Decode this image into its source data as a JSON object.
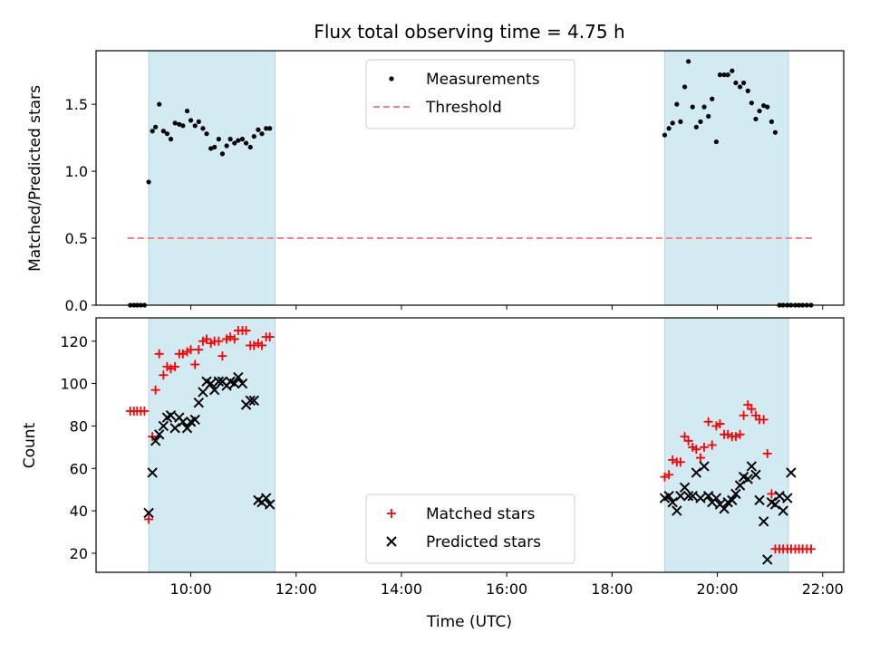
{
  "chart_data": {
    "title": "Flux total observing time = 4.75 h",
    "xlabel": "Time (UTC)",
    "x_unit": "hours UTC",
    "xlim": [
      8.2,
      22.4
    ],
    "xticks": [
      10,
      12,
      14,
      16,
      18,
      20,
      22
    ],
    "xtick_labels": [
      "10:00",
      "12:00",
      "14:00",
      "16:00",
      "18:00",
      "20:00",
      "22:00"
    ],
    "shaded_intervals": [
      [
        9.2,
        11.6
      ],
      [
        19.0,
        21.35
      ]
    ],
    "shade_color": "#add8e6",
    "panels": [
      {
        "type": "scatter",
        "ylabel": "Matched/Predicted stars",
        "ylim": [
          0,
          1.9
        ],
        "yticks": [
          0,
          0.5,
          1.0,
          1.5
        ],
        "ytick_labels": [
          "0.0",
          "0.5",
          "1.0",
          "1.5"
        ],
        "legend_position": "top-center",
        "series": [
          {
            "name": "Measurements",
            "marker": "dot",
            "color": "#000000",
            "x": [
              8.85,
              8.92,
              8.98,
              9.05,
              9.12,
              9.2,
              9.27,
              9.33,
              9.4,
              9.48,
              9.55,
              9.62,
              9.7,
              9.78,
              9.85,
              9.93,
              10.0,
              10.08,
              10.15,
              10.23,
              10.3,
              10.38,
              10.45,
              10.53,
              10.6,
              10.68,
              10.75,
              10.83,
              10.9,
              10.98,
              11.05,
              11.13,
              11.2,
              11.28,
              11.35,
              11.43,
              11.5,
              19.0,
              19.08,
              19.15,
              19.23,
              19.3,
              19.38,
              19.45,
              19.53,
              19.6,
              19.68,
              19.75,
              19.83,
              19.9,
              19.98,
              20.05,
              20.13,
              20.2,
              20.28,
              20.35,
              20.43,
              20.5,
              20.58,
              20.65,
              20.73,
              20.8,
              20.88,
              20.95,
              21.03,
              21.1,
              21.18,
              21.25,
              21.33,
              21.4,
              21.48,
              21.55,
              21.62,
              21.7,
              21.78
            ],
            "y": [
              0,
              0,
              0,
              0,
              0,
              0.92,
              1.3,
              1.33,
              1.5,
              1.3,
              1.28,
              1.24,
              1.36,
              1.35,
              1.34,
              1.45,
              1.38,
              1.34,
              1.37,
              1.32,
              1.28,
              1.17,
              1.18,
              1.24,
              1.13,
              1.19,
              1.24,
              1.21,
              1.23,
              1.24,
              1.21,
              1.18,
              1.26,
              1.31,
              1.28,
              1.32,
              1.32,
              1.27,
              1.32,
              1.36,
              1.5,
              1.37,
              1.63,
              1.82,
              1.48,
              1.33,
              1.37,
              1.48,
              1.41,
              1.54,
              1.22,
              1.72,
              1.72,
              1.72,
              1.75,
              1.66,
              1.63,
              1.66,
              1.6,
              1.51,
              1.39,
              1.45,
              1.49,
              1.48,
              1.37,
              1.29,
              0,
              0,
              0,
              0,
              0,
              0,
              0,
              0,
              0
            ]
          },
          {
            "name": "Threshold",
            "marker": "dashed-line",
            "color": "#ff7f7f",
            "x": [
              8.8,
              21.8
            ],
            "y": [
              0.5,
              0.5
            ]
          }
        ]
      },
      {
        "type": "scatter",
        "ylabel": "Count",
        "ylim": [
          11,
          131
        ],
        "yticks": [
          20,
          40,
          60,
          80,
          100,
          120
        ],
        "ytick_labels": [
          "20",
          "40",
          "60",
          "80",
          "100",
          "120"
        ],
        "legend_position": "bottom-center",
        "series": [
          {
            "name": "Matched stars",
            "marker": "plus",
            "color": "#ff0000",
            "x": [
              8.85,
              8.92,
              8.98,
              9.05,
              9.12,
              9.2,
              9.27,
              9.33,
              9.4,
              9.48,
              9.55,
              9.62,
              9.7,
              9.78,
              9.85,
              9.93,
              10.0,
              10.08,
              10.15,
              10.23,
              10.3,
              10.38,
              10.45,
              10.53,
              10.6,
              10.68,
              10.75,
              10.83,
              10.9,
              10.98,
              11.05,
              11.13,
              11.2,
              11.28,
              11.35,
              11.43,
              11.5,
              19.0,
              19.08,
              19.15,
              19.23,
              19.3,
              19.38,
              19.45,
              19.53,
              19.6,
              19.68,
              19.75,
              19.83,
              19.9,
              19.98,
              20.05,
              20.13,
              20.2,
              20.28,
              20.35,
              20.43,
              20.5,
              20.58,
              20.65,
              20.73,
              20.8,
              20.88,
              20.95,
              21.03,
              21.1,
              21.18,
              21.25,
              21.33,
              21.4,
              21.48,
              21.55,
              21.62,
              21.7,
              21.78
            ],
            "y": [
              87,
              87,
              87,
              87,
              87,
              36,
              75,
              97,
              114,
              104,
              108,
              107,
              108,
              114,
              114,
              115,
              116,
              109,
              116,
              120,
              121,
              119,
              120,
              120,
              113,
              121,
              122,
              121,
              125,
              125,
              125,
              118,
              118,
              119,
              118,
              122,
              122,
              56,
              57,
              64,
              63,
              63,
              75,
              73,
              70,
              69,
              65,
              70,
              82,
              71,
              80,
              81,
              76,
              76,
              75,
              75,
              76,
              85,
              90,
              88,
              85,
              83,
              83,
              67,
              48,
              22,
              22,
              22,
              22,
              22,
              22,
              22,
              22,
              22,
              22
            ]
          },
          {
            "name": "Predicted stars",
            "marker": "x",
            "color": "#000000",
            "x": [
              9.2,
              9.27,
              9.33,
              9.4,
              9.48,
              9.55,
              9.62,
              9.7,
              9.78,
              9.85,
              9.93,
              10.0,
              10.08,
              10.15,
              10.23,
              10.3,
              10.38,
              10.45,
              10.53,
              10.6,
              10.68,
              10.75,
              10.83,
              10.9,
              10.98,
              11.05,
              11.13,
              11.2,
              11.28,
              11.35,
              11.43,
              11.5,
              19.0,
              19.08,
              19.15,
              19.23,
              19.3,
              19.38,
              19.45,
              19.53,
              19.6,
              19.68,
              19.75,
              19.83,
              19.9,
              19.98,
              20.05,
              20.13,
              20.2,
              20.28,
              20.35,
              20.43,
              20.5,
              20.58,
              20.65,
              20.73,
              20.8,
              20.88,
              20.95,
              21.03,
              21.1,
              21.18,
              21.25,
              21.33,
              21.4
            ],
            "y": [
              39,
              58,
              73,
              76,
              80,
              84,
              85,
              79,
              84,
              82,
              79,
              82,
              83,
              91,
              96,
              101,
              100,
              97,
              101,
              101,
              99,
              101,
              100,
              103,
              100,
              90,
              92,
              92,
              45,
              44,
              46,
              43,
              46,
              47,
              44,
              40,
              47,
              51,
              47,
              47,
              58,
              46,
              61,
              47,
              44,
              46,
              43,
              41,
              44,
              45,
              48,
              52,
              56,
              55,
              61,
              57,
              45,
              35,
              17,
              44,
              43,
              47,
              40,
              46,
              58
            ]
          }
        ]
      }
    ]
  }
}
